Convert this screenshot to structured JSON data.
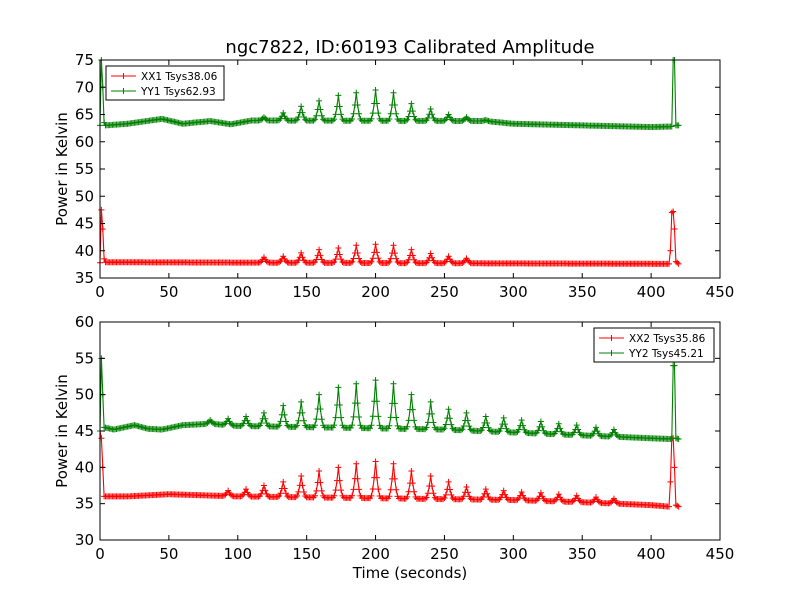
{
  "chart_data": [
    {
      "type": "line",
      "title": "ngc7822, ID:60193 Calibrated Amplitude",
      "xlabel": "",
      "ylabel": "Power in Kelvin",
      "xlim": [
        0,
        450
      ],
      "ylim": [
        35,
        75
      ],
      "xticks": [
        0,
        50,
        100,
        150,
        200,
        250,
        300,
        350,
        400,
        450
      ],
      "yticks": [
        35,
        40,
        45,
        50,
        55,
        60,
        65,
        70,
        75
      ],
      "legend": "top-left",
      "grid": false,
      "series": [
        {
          "name": "XX1 Tsys38.06",
          "color": "#ff0000",
          "baseline": 37.8,
          "values": [
            [
              0,
              37.8
            ],
            [
              1,
              47.5
            ],
            [
              2,
              44.0
            ],
            [
              3,
              38.5
            ],
            [
              4,
              37.9
            ],
            [
              405,
              37.6
            ],
            [
              413,
              37.6
            ],
            [
              414,
              40.0
            ],
            [
              415,
              47.0
            ],
            [
              416,
              47.2
            ],
            [
              417,
              44.0
            ],
            [
              418,
              38.0
            ],
            [
              420,
              37.6
            ]
          ],
          "peaks": [
            [
              119,
              38.8
            ],
            [
              133,
              39.0
            ],
            [
              146,
              39.6
            ],
            [
              159,
              40.2
            ],
            [
              173,
              40.5
            ],
            [
              186,
              41.0
            ],
            [
              200,
              41.2
            ],
            [
              213,
              41.0
            ],
            [
              226,
              40.2
            ],
            [
              240,
              39.5
            ],
            [
              253,
              39.0
            ],
            [
              266,
              38.6
            ]
          ],
          "peak_halfwidth": 3
        },
        {
          "name": "YY1 Tsys62.93",
          "color": "#008000",
          "baseline": 63.0,
          "values": [
            [
              0,
              63.0
            ],
            [
              1,
              75.0
            ],
            [
              2,
              70.0
            ],
            [
              3,
              63.5
            ],
            [
              4,
              63.0
            ],
            [
              415,
              62.8
            ],
            [
              416,
              75.0
            ],
            [
              417,
              75.0
            ],
            [
              418,
              63.0
            ],
            [
              420,
              63.0
            ]
          ],
          "ripple": [
            [
              20,
              63.3
            ],
            [
              45,
              64.2
            ],
            [
              60,
              63.3
            ],
            [
              80,
              63.8
            ],
            [
              95,
              63.2
            ],
            [
              110,
              63.9
            ],
            [
              280,
              63.8
            ],
            [
              300,
              63.3
            ],
            [
              350,
              63.0
            ],
            [
              400,
              62.7
            ]
          ],
          "peaks": [
            [
              119,
              64.5
            ],
            [
              133,
              65.3
            ],
            [
              146,
              66.5
            ],
            [
              159,
              67.5
            ],
            [
              173,
              68.5
            ],
            [
              186,
              69.0
            ],
            [
              200,
              69.5
            ],
            [
              213,
              69.0
            ],
            [
              226,
              67.0
            ],
            [
              240,
              66.0
            ],
            [
              253,
              65.0
            ],
            [
              266,
              64.5
            ],
            [
              280,
              64.0
            ]
          ],
          "peak_halfwidth": 3
        }
      ]
    },
    {
      "type": "line",
      "title": "",
      "xlabel": "Time (seconds)",
      "ylabel": "Power in Kelvin",
      "xlim": [
        0,
        450
      ],
      "ylim": [
        30,
        60
      ],
      "xticks": [
        0,
        50,
        100,
        150,
        200,
        250,
        300,
        350,
        400,
        450
      ],
      "yticks": [
        30,
        35,
        40,
        45,
        50,
        55,
        60
      ],
      "legend": "top-right",
      "grid": false,
      "series": [
        {
          "name": "XX2 Tsys35.86",
          "color": "#ff0000",
          "baseline": 36.0,
          "values": [
            [
              0,
              45.0
            ],
            [
              1,
              44.0
            ],
            [
              2,
              40.0
            ],
            [
              3,
              36.0
            ],
            [
              20,
              36.0
            ],
            [
              50,
              36.3
            ],
            [
              100,
              36.0
            ],
            [
              300,
              35.5
            ],
            [
              350,
              35.2
            ],
            [
              400,
              34.8
            ],
            [
              413,
              34.6
            ],
            [
              414,
              38.0
            ],
            [
              415,
              44.0
            ],
            [
              416,
              44.0
            ],
            [
              417,
              40.0
            ],
            [
              418,
              34.8
            ],
            [
              420,
              34.6
            ]
          ],
          "peaks": [
            [
              93,
              36.8
            ],
            [
              106,
              37.0
            ],
            [
              119,
              37.5
            ],
            [
              133,
              38.0
            ],
            [
              146,
              38.8
            ],
            [
              159,
              39.5
            ],
            [
              173,
              40.0
            ],
            [
              186,
              40.5
            ],
            [
              200,
              40.8
            ],
            [
              213,
              40.5
            ],
            [
              226,
              39.5
            ],
            [
              240,
              38.8
            ],
            [
              253,
              38.0
            ],
            [
              266,
              37.3
            ],
            [
              280,
              37.0
            ],
            [
              293,
              36.8
            ],
            [
              306,
              36.6
            ],
            [
              320,
              36.5
            ],
            [
              333,
              36.3
            ],
            [
              346,
              36.1
            ],
            [
              360,
              35.9
            ],
            [
              373,
              35.7
            ]
          ],
          "peak_halfwidth": 3
        },
        {
          "name": "YY2 Tsys45.21",
          "color": "#008000",
          "baseline": 45.0,
          "values": [
            [
              0,
              45.0
            ],
            [
              1,
              55.0
            ],
            [
              2,
              50.0
            ],
            [
              3,
              45.5
            ],
            [
              10,
              45.2
            ],
            [
              25,
              45.8
            ],
            [
              35,
              45.3
            ],
            [
              45,
              45.2
            ],
            [
              60,
              45.8
            ],
            [
              80,
              46.0
            ],
            [
              100,
              45.7
            ],
            [
              250,
              45.2
            ],
            [
              300,
              44.8
            ],
            [
              350,
              44.4
            ],
            [
              400,
              44.0
            ],
            [
              414,
              43.9
            ],
            [
              415,
              44.0
            ],
            [
              416,
              54.0
            ],
            [
              417,
              54.0
            ],
            [
              418,
              44.0
            ],
            [
              420,
              43.9
            ]
          ],
          "peaks": [
            [
              80,
              46.5
            ],
            [
              93,
              46.7
            ],
            [
              106,
              47.0
            ],
            [
              119,
              47.5
            ],
            [
              133,
              48.5
            ],
            [
              146,
              49.0
            ],
            [
              159,
              50.0
            ],
            [
              173,
              51.0
            ],
            [
              186,
              51.5
            ],
            [
              200,
              52.0
            ],
            [
              213,
              51.5
            ],
            [
              226,
              50.0
            ],
            [
              240,
              49.0
            ],
            [
              253,
              48.0
            ],
            [
              266,
              47.5
            ],
            [
              280,
              47.0
            ],
            [
              293,
              46.8
            ],
            [
              306,
              46.5
            ],
            [
              320,
              46.3
            ],
            [
              333,
              46.0
            ],
            [
              346,
              45.8
            ],
            [
              360,
              45.5
            ],
            [
              373,
              45.2
            ]
          ],
          "peak_halfwidth": 3
        }
      ]
    }
  ]
}
